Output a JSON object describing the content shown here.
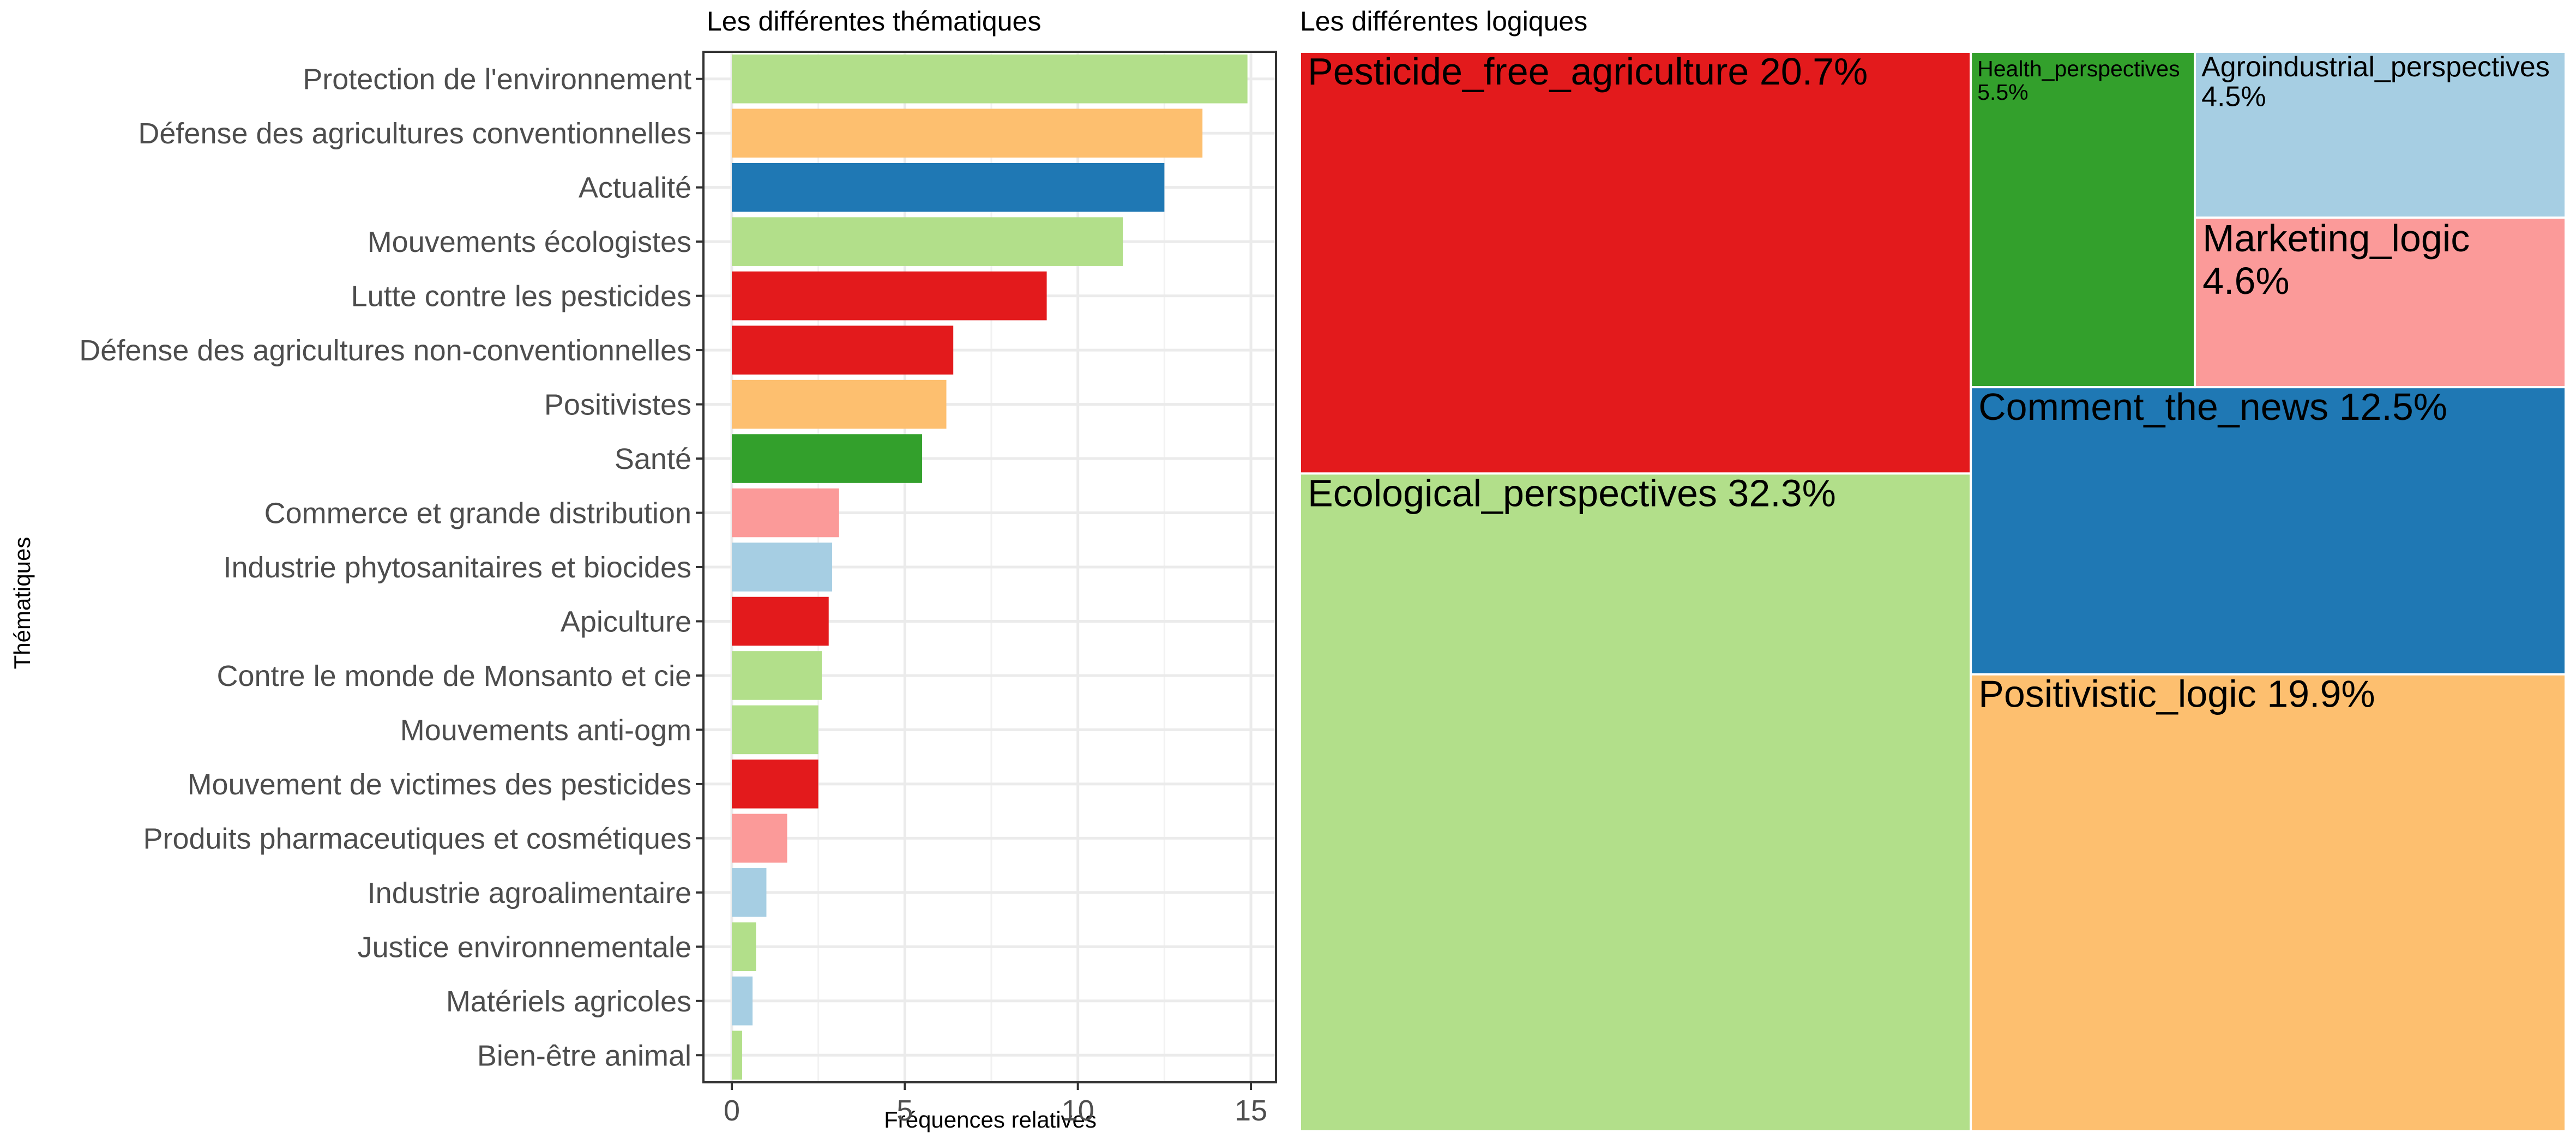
{
  "chart_data": [
    {
      "type": "bar",
      "orientation": "horizontal",
      "title": "Les différentes thématiques",
      "xlabel": "Fréquences relatives",
      "ylabel": "Thématiques",
      "xlim": [
        0,
        15.6
      ],
      "x_ticks": [
        "0",
        "5",
        "10",
        "15"
      ],
      "x_tick_values": [
        0,
        5,
        10,
        15
      ],
      "grid": true,
      "categories": [
        "Protection de l'environnement",
        "Défense des agricultures conventionnelles",
        "Actualité",
        "Mouvements écologistes",
        "Lutte contre les pesticides",
        "Défense des agricultures non-conventionnelles",
        "Positivistes",
        "Santé",
        "Commerce et grande distribution",
        "Industrie phytosanitaires et biocides",
        "Apiculture",
        "Contre le monde de Monsanto et cie",
        "Mouvements anti-ogm",
        "Mouvement de victimes des pesticides",
        "Produits pharmaceutiques et cosmétiques",
        "Industrie agroalimentaire",
        "Justice environnementale",
        "Matériels agricoles",
        "Bien-être animal"
      ],
      "values": [
        14.9,
        13.6,
        12.5,
        11.3,
        9.1,
        6.4,
        6.2,
        5.5,
        3.1,
        2.9,
        2.8,
        2.6,
        2.5,
        2.5,
        1.6,
        1.0,
        0.7,
        0.6,
        0.3
      ],
      "colors": [
        "#b2df8a",
        "#fdbf6f",
        "#1f78b4",
        "#b2df8a",
        "#e31a1c",
        "#e31a1c",
        "#fdbf6f",
        "#33a02c",
        "#fb9a99",
        "#a6cee3",
        "#e31a1c",
        "#b2df8a",
        "#b2df8a",
        "#e31a1c",
        "#fb9a99",
        "#a6cee3",
        "#b2df8a",
        "#a6cee3",
        "#b2df8a"
      ]
    },
    {
      "type": "treemap",
      "title": "Les différentes logiques",
      "items": [
        {
          "name": "Ecological_perspectives",
          "label": "32.3%",
          "value": 32.3,
          "color": "#b2df8a"
        },
        {
          "name": "Pesticide_free_agriculture",
          "label": "20.7%",
          "value": 20.7,
          "color": "#e31a1c"
        },
        {
          "name": "Positivistic_logic",
          "label": "19.9%",
          "value": 19.9,
          "color": "#fdbf6f"
        },
        {
          "name": "Comment_the_news",
          "label": "12.5%",
          "value": 12.5,
          "color": "#1f78b4"
        },
        {
          "name": "Health_perspectives",
          "label": "5.5%",
          "value": 5.5,
          "color": "#33a02c"
        },
        {
          "name": "Marketing_logic",
          "label": "4.6%",
          "value": 4.6,
          "color": "#fb9a99"
        },
        {
          "name": "Agroindustrial_perspectives",
          "label": "4.5%",
          "value": 4.5,
          "color": "#a6cee3"
        }
      ]
    }
  ]
}
